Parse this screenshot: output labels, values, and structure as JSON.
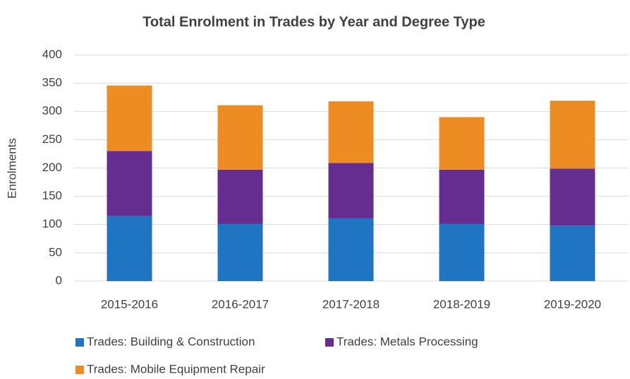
{
  "chart_data": {
    "type": "bar",
    "stacked": true,
    "title": "Total Enrolment in Trades by Year and Degree Type",
    "y_label": "Enrolments",
    "categories": [
      "2015-2016",
      "2016-2017",
      "2017-2018",
      "2018-2019",
      "2019-2020"
    ],
    "series": [
      {
        "name": "Trades: Building & Construction",
        "color": "#1f75c1",
        "values": [
          115,
          101,
          111,
          101,
          98
        ]
      },
      {
        "name": "Trades: Metals Processing",
        "color": "#662d91",
        "values": [
          115,
          96,
          98,
          96,
          101
        ]
      },
      {
        "name": "Trades: Mobile Equipment Repair",
        "color": "#ee8c24",
        "values": [
          116,
          114,
          109,
          93,
          120
        ]
      }
    ],
    "ylim": [
      0,
      400
    ],
    "yticks": [
      0,
      50,
      100,
      150,
      200,
      250,
      300,
      350,
      400
    ],
    "grid": true,
    "legend": "bottom"
  }
}
